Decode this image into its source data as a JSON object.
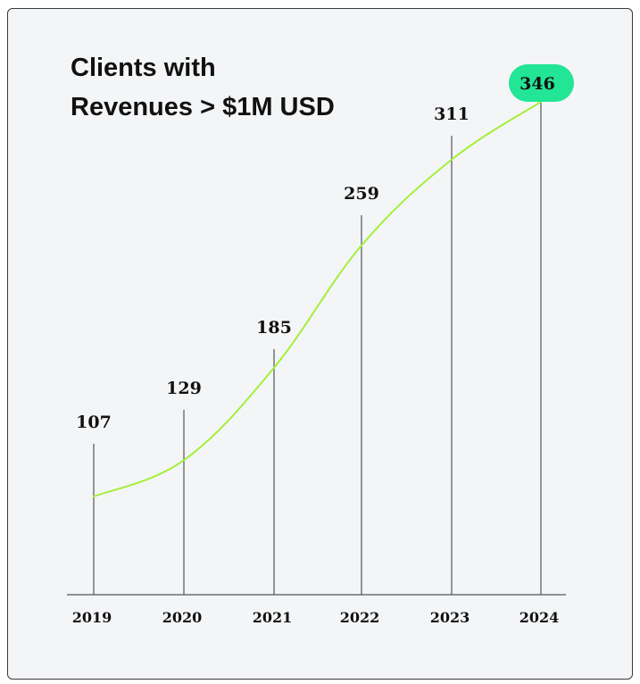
{
  "chart_data": {
    "type": "line",
    "title": [
      "Clients with",
      "Revenues > $1M USD"
    ],
    "xlabel": "",
    "ylabel": "",
    "categories": [
      "2019",
      "2020",
      "2021",
      "2022",
      "2023",
      "2024"
    ],
    "values": [
      107,
      129,
      185,
      259,
      311,
      346
    ],
    "grid": false,
    "highlight_last_value": true,
    "colors": {
      "line": "#a3f03a",
      "highlight": "#22e596",
      "stem": "#555555",
      "axis": "#555555",
      "background": "#f4f5f7"
    }
  }
}
